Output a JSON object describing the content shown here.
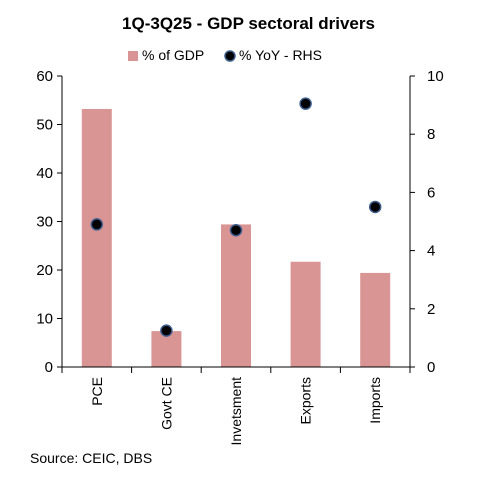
{
  "chart_data": {
    "type": "bar",
    "title": "1Q-3Q25 - GDP sectoral drivers",
    "categories": [
      "PCE",
      "Govt CE",
      "Invetsment",
      "Exports",
      "Imports"
    ],
    "series": [
      {
        "name": "% of GDP",
        "type": "bar",
        "axis": "left",
        "color": "#d99594",
        "values": [
          53.2,
          7.4,
          29.4,
          21.7,
          19.4
        ]
      },
      {
        "name": "% YoY - RHS",
        "type": "scatter",
        "axis": "right",
        "color": "#000000",
        "values": [
          4.9,
          1.25,
          4.7,
          9.05,
          5.5
        ]
      }
    ],
    "y_left": {
      "min": 0,
      "max": 60,
      "step": 10,
      "ticks": [
        "0",
        "10",
        "20",
        "30",
        "40",
        "50",
        "60"
      ]
    },
    "y_right": {
      "min": 0,
      "max": 10,
      "step": 2,
      "ticks": [
        "0",
        "2",
        "4",
        "6",
        "8",
        "10"
      ]
    },
    "legend_position": "top-center",
    "grid": false,
    "source": "Source: CEIC, DBS"
  }
}
